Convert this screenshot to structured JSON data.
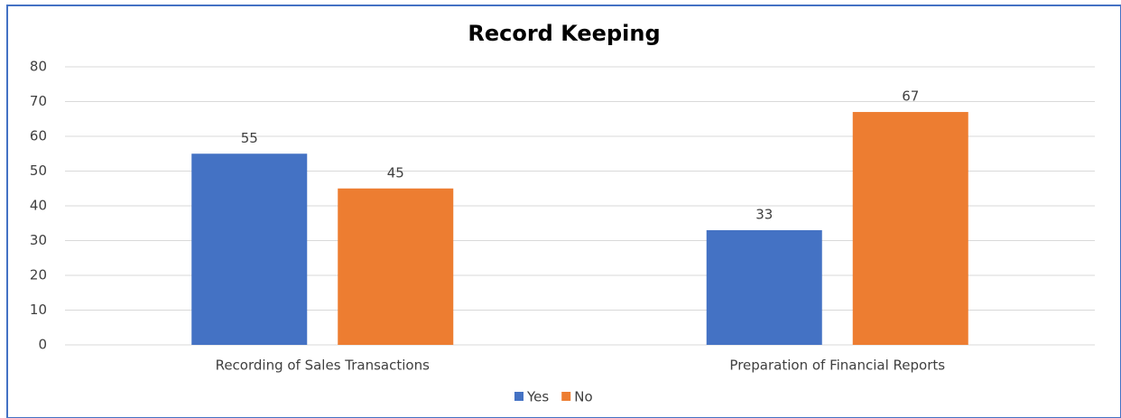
{
  "chart_data": {
    "type": "bar",
    "title": "Record Keeping",
    "categories": [
      "Recording of Sales Transactions",
      "Preparation of Financial Reports"
    ],
    "series": [
      {
        "name": "Yes",
        "color": "#4472c4",
        "values": [
          55,
          33
        ]
      },
      {
        "name": "No",
        "color": "#ed7d31",
        "values": [
          45,
          67
        ]
      }
    ],
    "ylim": [
      0,
      80
    ],
    "yticks": [
      0,
      10,
      20,
      30,
      40,
      50,
      60,
      70,
      80
    ],
    "grid": true,
    "legend": "bottom"
  }
}
